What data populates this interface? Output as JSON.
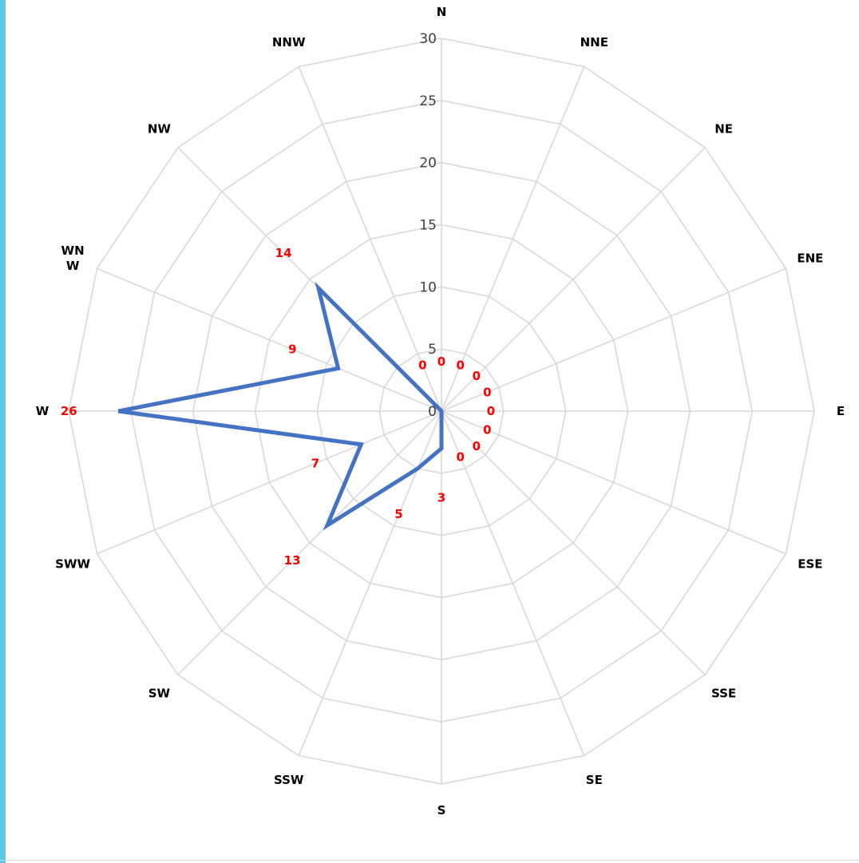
{
  "chart_data": {
    "type": "radar",
    "categories": [
      "N",
      "NNE",
      "NE",
      "ENE",
      "E",
      "ESE",
      "SSE",
      "SE",
      "S",
      "SSW",
      "SW",
      "SWW",
      "W",
      "WNW",
      "NW",
      "NNW"
    ],
    "category_lines": {
      "WNW": [
        "WN",
        "W"
      ]
    },
    "series": [
      {
        "values": [
          0,
          0,
          0,
          0,
          0,
          0,
          0,
          0,
          3,
          5,
          13,
          7,
          26,
          9,
          14,
          0
        ],
        "color": "#4472c4"
      }
    ],
    "data_label_color": "#ff0000",
    "ticks": [
      0,
      5,
      10,
      15,
      20,
      25,
      30
    ],
    "rlim": [
      0,
      30
    ],
    "grid": true,
    "grid_color": "#d9d9d9",
    "legend": "none"
  }
}
